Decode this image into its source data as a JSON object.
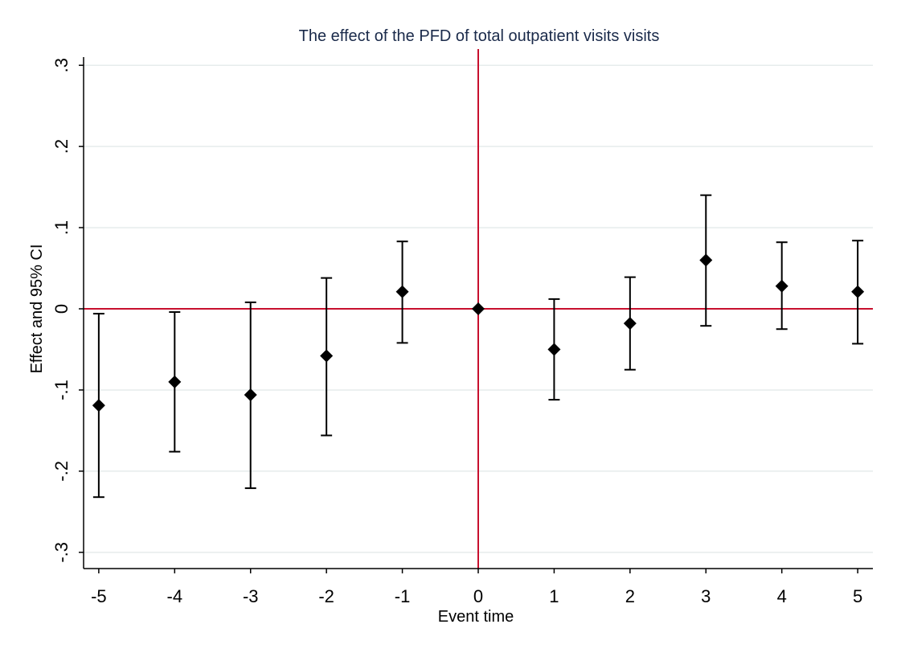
{
  "chart_data": {
    "type": "scatter",
    "title": "The effect of the PFD of total outpatient visits visits",
    "xlabel": "Event time",
    "ylabel": "Effect and 95% CI",
    "xlim": [
      -5.2,
      5.2
    ],
    "ylim": [
      -0.32,
      0.32
    ],
    "x_ticks": [
      -5,
      -4,
      -3,
      -2,
      -1,
      0,
      1,
      2,
      3,
      4,
      5
    ],
    "x_tick_labels": [
      "-5",
      "-4",
      "-3",
      "-2",
      "-1",
      "0",
      "1",
      "2",
      "3",
      "4",
      "5"
    ],
    "y_ticks": [
      -0.3,
      -0.2,
      -0.1,
      0,
      0.1,
      0.2,
      0.3
    ],
    "y_tick_labels": [
      "-.3",
      "-.2",
      "-.1",
      "0",
      ".1",
      ".2",
      ".3"
    ],
    "grid": true,
    "reference_lines": {
      "x": 0,
      "y": 0,
      "color": "#c8102e"
    },
    "marker_color": "#000000",
    "series": [
      {
        "x": [
          -5,
          -4,
          -3,
          -2,
          -1,
          0,
          1,
          2,
          3,
          4,
          5
        ],
        "values": [
          -0.119,
          -0.09,
          -0.106,
          -0.058,
          0.021,
          0.0,
          -0.05,
          -0.018,
          0.06,
          0.028,
          0.021
        ],
        "ci_low": [
          -0.232,
          -0.176,
          -0.221,
          -0.156,
          -0.042,
          0.0,
          -0.112,
          -0.075,
          -0.021,
          -0.025,
          -0.043
        ],
        "ci_high": [
          -0.006,
          -0.004,
          0.008,
          0.038,
          0.083,
          0.0,
          0.012,
          0.039,
          0.14,
          0.082,
          0.084
        ]
      }
    ]
  }
}
